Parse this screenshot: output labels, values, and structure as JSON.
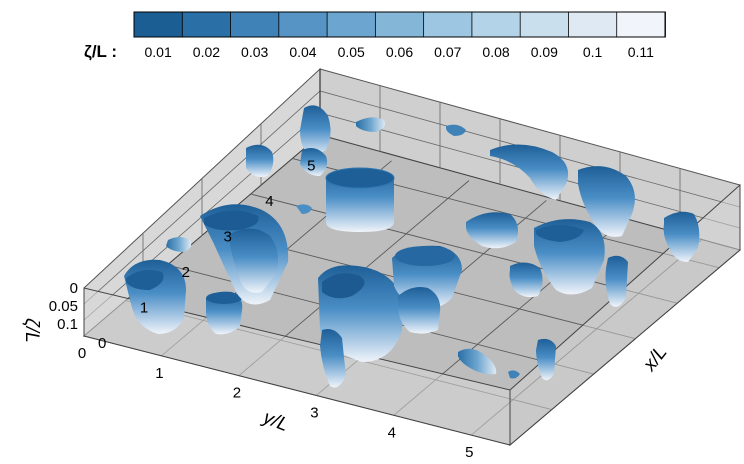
{
  "chart_data": {
    "type": "surface-3d",
    "colorbar": {
      "title": "ζ/L :",
      "ticks": [
        "0.01",
        "0.02",
        "0.03",
        "0.04",
        "0.05",
        "0.06",
        "0.07",
        "0.08",
        "0.09",
        "0.1",
        "0.11"
      ],
      "range": [
        0.005,
        0.115
      ],
      "colors": [
        "#1a5e93",
        "#2a6fa6",
        "#3f82b7",
        "#5594c4",
        "#6ca5cf",
        "#84b6d8",
        "#9cc6e1",
        "#b3d3e8",
        "#c9dfee",
        "#dee9f3",
        "#f1f4fa"
      ]
    },
    "axes": {
      "x": {
        "label": "x/L",
        "ticks": [
          "0",
          "1",
          "2",
          "3",
          "4",
          "5"
        ],
        "range": [
          0,
          5.5
        ]
      },
      "y": {
        "label": "y/L",
        "ticks": [
          "0",
          "1",
          "2",
          "3",
          "4",
          "5"
        ],
        "range": [
          0,
          5.5
        ]
      },
      "z": {
        "label": "ζ/L",
        "ticks": [
          "0",
          "0.05",
          "0.1"
        ],
        "range": [
          0,
          0.1
        ]
      }
    },
    "grid": true,
    "floor_color": "#bdbdbd"
  }
}
